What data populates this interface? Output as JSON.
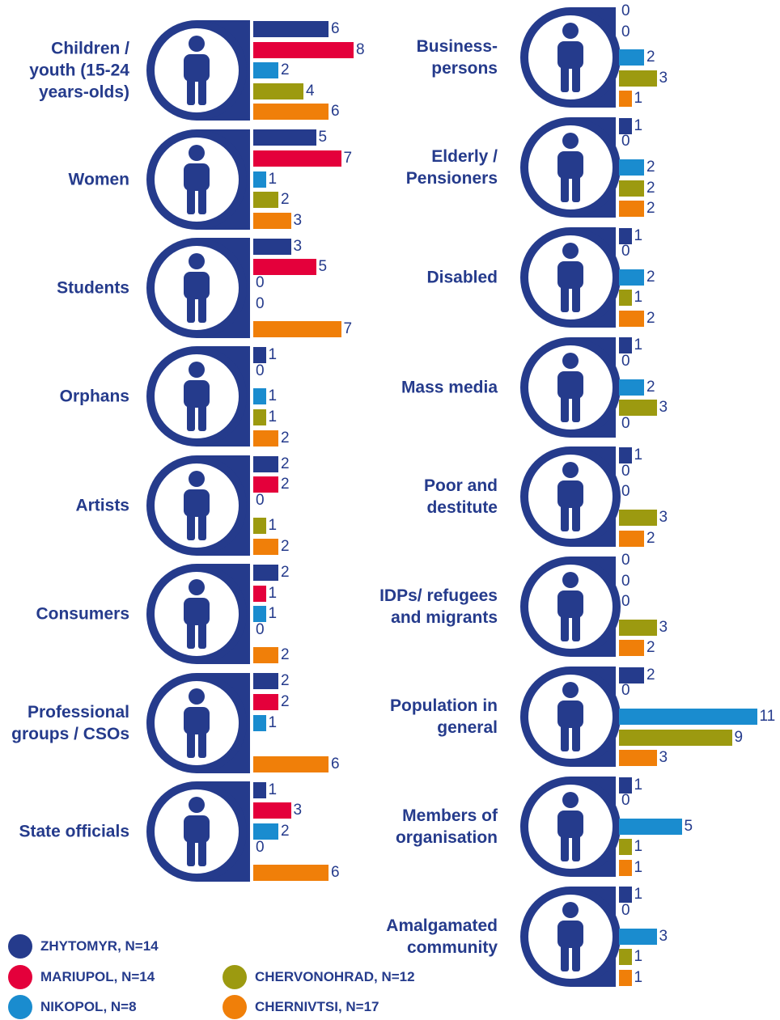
{
  "chart_data": {
    "type": "bar",
    "categories": [
      "Children / youth (15-24 years-olds)",
      "Women",
      "Students",
      "Orphans",
      "Artists",
      "Consumers",
      "Professional groups / CSOs",
      "State officials",
      "Business-persons",
      "Elderly / Pensioners",
      "Disabled",
      "Mass media",
      "Poor and destitute",
      "IDPs/ refugees and migrants",
      "Population in general",
      "Members of organisation",
      "Amalgamated community"
    ],
    "series": [
      {
        "name": "ZHYTOMYR, N=14",
        "color": "#253b8c",
        "values": [
          6,
          5,
          3,
          1,
          2,
          2,
          2,
          1,
          0,
          1,
          1,
          1,
          1,
          0,
          2,
          1,
          1
        ]
      },
      {
        "name": "MARIUPOL, N=14",
        "color": "#e4003b",
        "values": [
          8,
          7,
          5,
          0,
          2,
          1,
          2,
          3,
          0,
          0,
          0,
          0,
          0,
          0,
          0,
          0,
          0
        ]
      },
      {
        "name": "NIKOPOL, N=8",
        "color": "#1a8ccf",
        "values": [
          2,
          1,
          0,
          1,
          0,
          1,
          1,
          2,
          2,
          2,
          2,
          2,
          0,
          0,
          11,
          5,
          3
        ]
      },
      {
        "name": "CHERVONOHRAD, N=12",
        "color": "#9c9a10",
        "values": [
          4,
          2,
          0,
          1,
          1,
          0,
          null,
          0,
          3,
          2,
          1,
          3,
          3,
          3,
          9,
          1,
          1
        ]
      },
      {
        "name": "CHERNIVTSI, N=17",
        "color": "#f07f09",
        "values": [
          6,
          3,
          7,
          2,
          2,
          2,
          6,
          6,
          1,
          2,
          2,
          0,
          2,
          2,
          3,
          1,
          1
        ]
      }
    ]
  }
}
